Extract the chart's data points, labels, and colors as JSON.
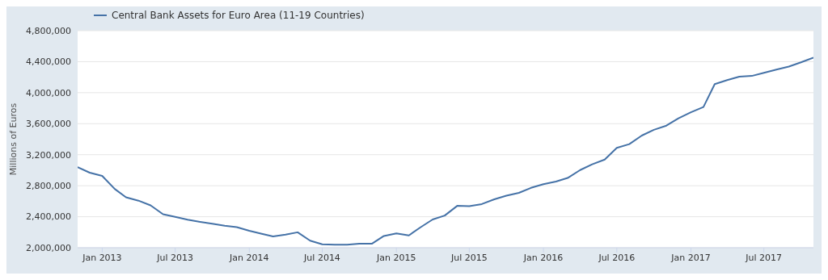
{
  "chart_data": {
    "type": "line",
    "ylabel": "Millions of Euros",
    "legend": "top left",
    "grid": "y",
    "marker": "none",
    "line_style": "solid",
    "x": [
      "2012-11",
      "2012-12",
      "2013-01",
      "2013-02",
      "2013-03",
      "2013-04",
      "2013-05",
      "2013-06",
      "2013-07",
      "2013-08",
      "2013-09",
      "2013-10",
      "2013-11",
      "2013-12",
      "2014-01",
      "2014-02",
      "2014-03",
      "2014-04",
      "2014-05",
      "2014-06",
      "2014-07",
      "2014-08",
      "2014-09",
      "2014-10",
      "2014-11",
      "2014-12",
      "2015-01",
      "2015-02",
      "2015-03",
      "2015-04",
      "2015-05",
      "2015-06",
      "2015-07",
      "2015-08",
      "2015-09",
      "2015-10",
      "2015-11",
      "2015-12",
      "2016-01",
      "2016-02",
      "2016-03",
      "2016-04",
      "2016-05",
      "2016-06",
      "2016-07",
      "2016-08",
      "2016-09",
      "2016-10",
      "2016-11",
      "2016-12",
      "2017-01",
      "2017-02",
      "2017-03",
      "2017-04",
      "2017-05",
      "2017-06",
      "2017-07",
      "2017-08",
      "2017-09",
      "2017-10",
      "2017-11"
    ],
    "series": [
      {
        "name": "Central Bank Assets for Euro Area (11-19 Countries)",
        "color": "#4572a7",
        "values": [
          3040000,
          2968000,
          2927000,
          2759000,
          2651000,
          2607000,
          2546000,
          2432000,
          2398000,
          2361000,
          2334000,
          2310000,
          2283000,
          2266000,
          2219000,
          2179000,
          2145000,
          2169000,
          2199000,
          2091000,
          2044000,
          2040000,
          2040000,
          2051000,
          2051000,
          2152000,
          2185000,
          2159000,
          2260000,
          2364000,
          2415000,
          2540000,
          2536000,
          2563000,
          2624000,
          2671000,
          2708000,
          2772000,
          2820000,
          2853000,
          2900000,
          3002000,
          3076000,
          3137000,
          3288000,
          3336000,
          3447000,
          3521000,
          3575000,
          3670000,
          3747000,
          3815000,
          4111000,
          4162000,
          4206000,
          4216000,
          4256000,
          4297000,
          4337000,
          4391000,
          4452000
        ]
      }
    ],
    "xlim": [
      "2012-11",
      "2017-11"
    ],
    "xticks": [
      {
        "value": "2013-01",
        "label": "Jan 2013"
      },
      {
        "value": "2013-07",
        "label": "Jul 2013"
      },
      {
        "value": "2014-01",
        "label": "Jan 2014"
      },
      {
        "value": "2014-07",
        "label": "Jul 2014"
      },
      {
        "value": "2015-01",
        "label": "Jan 2015"
      },
      {
        "value": "2015-07",
        "label": "Jul 2015"
      },
      {
        "value": "2016-01",
        "label": "Jan 2016"
      },
      {
        "value": "2016-07",
        "label": "Jul 2016"
      },
      {
        "value": "2017-01",
        "label": "Jan 2017"
      },
      {
        "value": "2017-07",
        "label": "Jul 2017"
      }
    ],
    "ylim": [
      2000000,
      4800000
    ],
    "yticks": [
      {
        "value": 2000000,
        "label": "2,000,000"
      },
      {
        "value": 2400000,
        "label": "2,400,000"
      },
      {
        "value": 2800000,
        "label": "2,800,000"
      },
      {
        "value": 3200000,
        "label": "3,200,000"
      },
      {
        "value": 3600000,
        "label": "3,600,000"
      },
      {
        "value": 4000000,
        "label": "4,000,000"
      },
      {
        "value": 4400000,
        "label": "4,400,000"
      },
      {
        "value": 4800000,
        "label": "4,800,000"
      }
    ]
  }
}
